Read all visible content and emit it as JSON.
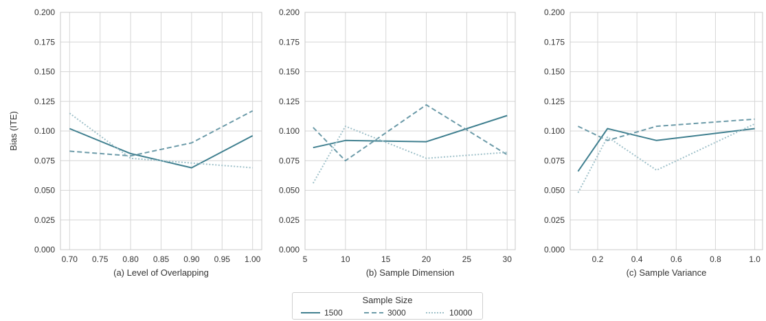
{
  "chart_data": [
    {
      "type": "line",
      "xlabel": "(a) Level of Overlapping",
      "ylabel": "Bias (ITE)",
      "xlim": [
        0.685,
        1.015
      ],
      "ylim": [
        0,
        0.2
      ],
      "xticks": [
        "0.70",
        "0.75",
        "0.80",
        "0.85",
        "0.90",
        "0.95",
        "1.00"
      ],
      "xtick_values": [
        0.7,
        0.75,
        0.8,
        0.85,
        0.9,
        0.95,
        1.0
      ],
      "yticks": [
        "0.000",
        "0.025",
        "0.050",
        "0.075",
        "0.100",
        "0.125",
        "0.150",
        "0.175",
        "0.200"
      ],
      "ytick_values": [
        0,
        0.025,
        0.05,
        0.075,
        0.1,
        0.125,
        0.15,
        0.175,
        0.2
      ],
      "grid": true,
      "x": [
        0.7,
        0.8,
        0.9,
        1.0
      ],
      "series": [
        {
          "name": "1500",
          "values": [
            0.102,
            0.081,
            0.069,
            0.096
          ]
        },
        {
          "name": "3000",
          "values": [
            0.083,
            0.079,
            0.09,
            0.117
          ]
        },
        {
          "name": "10000",
          "values": [
            0.115,
            0.077,
            0.073,
            0.069
          ]
        }
      ]
    },
    {
      "type": "line",
      "xlabel": "(b) Sample Dimension",
      "ylabel": "",
      "xlim": [
        5,
        31
      ],
      "ylim": [
        0,
        0.2
      ],
      "xticks": [
        "5",
        "10",
        "15",
        "20",
        "25",
        "30"
      ],
      "xtick_values": [
        5,
        10,
        15,
        20,
        25,
        30
      ],
      "yticks": [
        "0.000",
        "0.025",
        "0.050",
        "0.075",
        "0.100",
        "0.125",
        "0.150",
        "0.175",
        "0.200"
      ],
      "ytick_values": [
        0,
        0.025,
        0.05,
        0.075,
        0.1,
        0.125,
        0.15,
        0.175,
        0.2
      ],
      "grid": true,
      "x": [
        6,
        10,
        20,
        30
      ],
      "series": [
        {
          "name": "1500",
          "values": [
            0.086,
            0.092,
            0.091,
            0.113
          ]
        },
        {
          "name": "3000",
          "values": [
            0.103,
            0.075,
            0.122,
            0.08
          ]
        },
        {
          "name": "10000",
          "values": [
            0.056,
            0.104,
            0.077,
            0.082
          ]
        }
      ]
    },
    {
      "type": "line",
      "xlabel": "(c) Sample Variance",
      "ylabel": "",
      "xlim": [
        0.06,
        1.04
      ],
      "ylim": [
        0,
        0.2
      ],
      "xticks": [
        "0.2",
        "0.4",
        "0.6",
        "0.8",
        "1.0"
      ],
      "xtick_values": [
        0.2,
        0.4,
        0.6,
        0.8,
        1.0
      ],
      "yticks": [
        "0.000",
        "0.025",
        "0.050",
        "0.075",
        "0.100",
        "0.125",
        "0.150",
        "0.175",
        "0.200"
      ],
      "ytick_values": [
        0,
        0.025,
        0.05,
        0.075,
        0.1,
        0.125,
        0.15,
        0.175,
        0.2
      ],
      "grid": true,
      "x": [
        0.1,
        0.25,
        0.5,
        1.0
      ],
      "series": [
        {
          "name": "1500",
          "values": [
            0.066,
            0.102,
            0.092,
            0.102
          ]
        },
        {
          "name": "3000",
          "values": [
            0.104,
            0.092,
            0.104,
            0.11
          ]
        },
        {
          "name": "10000",
          "values": [
            0.048,
            0.095,
            0.067,
            0.106
          ]
        }
      ]
    }
  ],
  "legend": {
    "title": "Sample Size",
    "placement": "bottom-center",
    "items": [
      {
        "label": "1500",
        "style": "solid"
      },
      {
        "label": "3000",
        "style": "dashed"
      },
      {
        "label": "10000",
        "style": "dotted"
      }
    ]
  },
  "colors": {
    "1500": "#3f7f8f",
    "3000": "#6b9aa8",
    "10000": "#9ec0c9",
    "grid": "#d6d6d6",
    "axis": "#c8c8c8",
    "text": "#333333"
  }
}
